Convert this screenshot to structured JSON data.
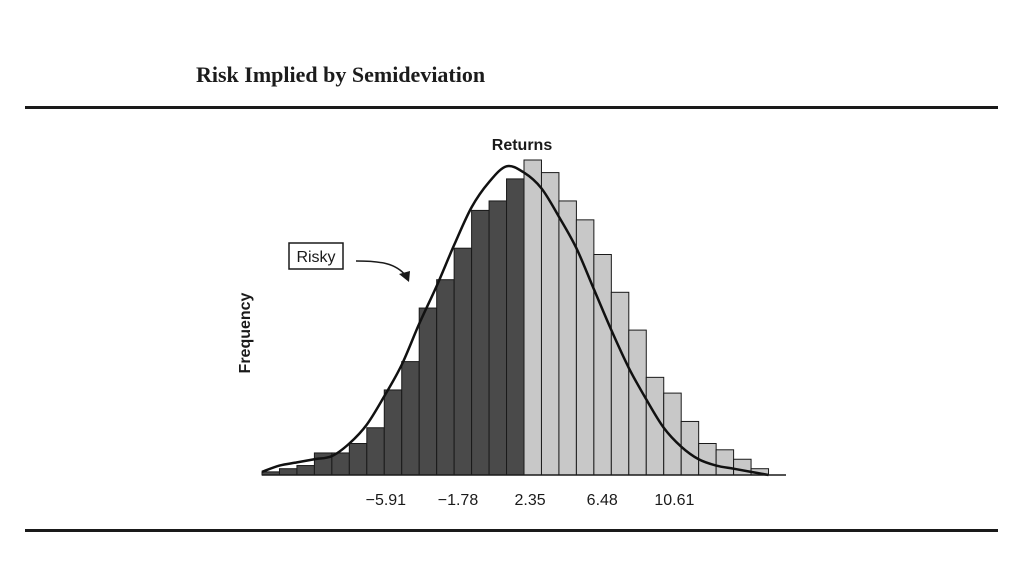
{
  "page": {
    "title": "Risk Implied by Semideviation"
  },
  "chart_data": {
    "type": "bar",
    "title": "Returns",
    "xlabel": "",
    "ylabel": "Frequency",
    "xticks": [
      -5.91,
      -1.78,
      2.35,
      6.48,
      10.61
    ],
    "xlim": [
      -13.0,
      17.0
    ],
    "ylim": [
      0,
      100
    ],
    "bin_width": 1.0,
    "threshold": 2.35,
    "annotation": "Risky",
    "colors": {
      "below_threshold": "#4a4a4a",
      "above_threshold": "#c8c8c8",
      "edge": "#1a1a1a",
      "curve": "#111111"
    },
    "series": [
      {
        "x": [
          -12.5,
          -11.5,
          -10.5,
          -9.5,
          -8.5,
          -7.5,
          -6.5,
          -5.5,
          -4.5,
          -3.5,
          -2.5,
          -1.5,
          -0.5,
          0.5,
          1.5,
          2.5,
          3.5,
          4.5,
          5.5,
          6.5,
          7.5,
          8.5,
          9.5,
          10.5,
          11.5,
          12.5,
          13.5,
          14.5,
          15.5
        ],
        "values": [
          1,
          2,
          3,
          7,
          7,
          10,
          15,
          27,
          36,
          53,
          62,
          72,
          84,
          87,
          94,
          100,
          96,
          87,
          81,
          70,
          58,
          46,
          31,
          26,
          17,
          10,
          8,
          5,
          2
        ]
      },
      {
        "x": [
          -13.0,
          -12.0,
          -11.0,
          -10.0,
          -9.0,
          -8.0,
          -7.0,
          -6.0,
          -5.0,
          -4.0,
          -3.0,
          -2.0,
          -1.0,
          0.0,
          1.0,
          2.0,
          3.0,
          4.0,
          5.0,
          6.0,
          7.0,
          8.0,
          9.0,
          10.0,
          11.0,
          12.0,
          13.0,
          14.0,
          15.0,
          16.0
        ],
        "values": [
          1,
          3,
          4,
          5,
          6,
          10,
          16,
          25,
          35,
          48,
          60,
          73,
          85,
          93,
          98,
          96,
          91,
          82,
          72,
          59,
          46,
          34,
          24,
          15,
          9,
          5,
          3,
          2,
          1,
          0
        ]
      }
    ]
  }
}
